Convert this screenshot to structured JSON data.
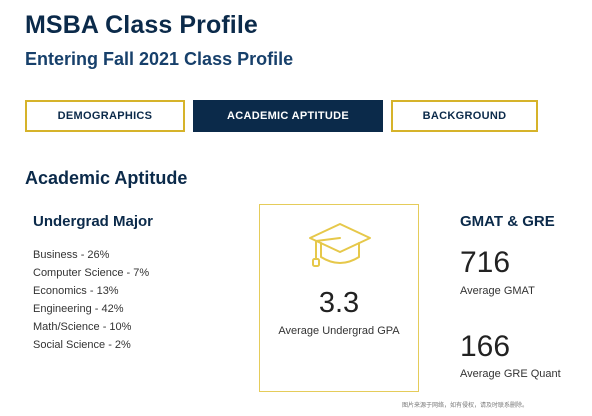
{
  "header": {
    "title": "MSBA Class Profile",
    "subtitle": "Entering Fall 2021 Class Profile"
  },
  "tabs": [
    {
      "label": "DEMOGRAPHICS",
      "active": false
    },
    {
      "label": "ACADEMIC APTITUDE",
      "active": true
    },
    {
      "label": "BACKGROUND",
      "active": false
    }
  ],
  "section": {
    "heading": "Academic Aptitude"
  },
  "undergrad_major": {
    "heading": "Undergrad Major",
    "items": [
      "Business - 26%",
      "Computer Science - 7%",
      "Economics - 13%",
      "Engineering - 42%",
      "Math/Science - 10%",
      "Social Science - 2%"
    ]
  },
  "gpa": {
    "icon": "graduation-cap-icon",
    "value": "3.3",
    "label": "Average Undergrad GPA"
  },
  "tests": {
    "heading": "GMAT & GRE",
    "gmat_value": "716",
    "gmat_label": "Average GMAT",
    "gre_value": "166",
    "gre_label": "Average GRE Quant"
  },
  "footnote": "图片来源于网络，如有侵权，请及时联系删除。",
  "colors": {
    "navy": "#0b2a4a",
    "gold": "#d6b32a",
    "icon_gold": "#e6c84a"
  }
}
